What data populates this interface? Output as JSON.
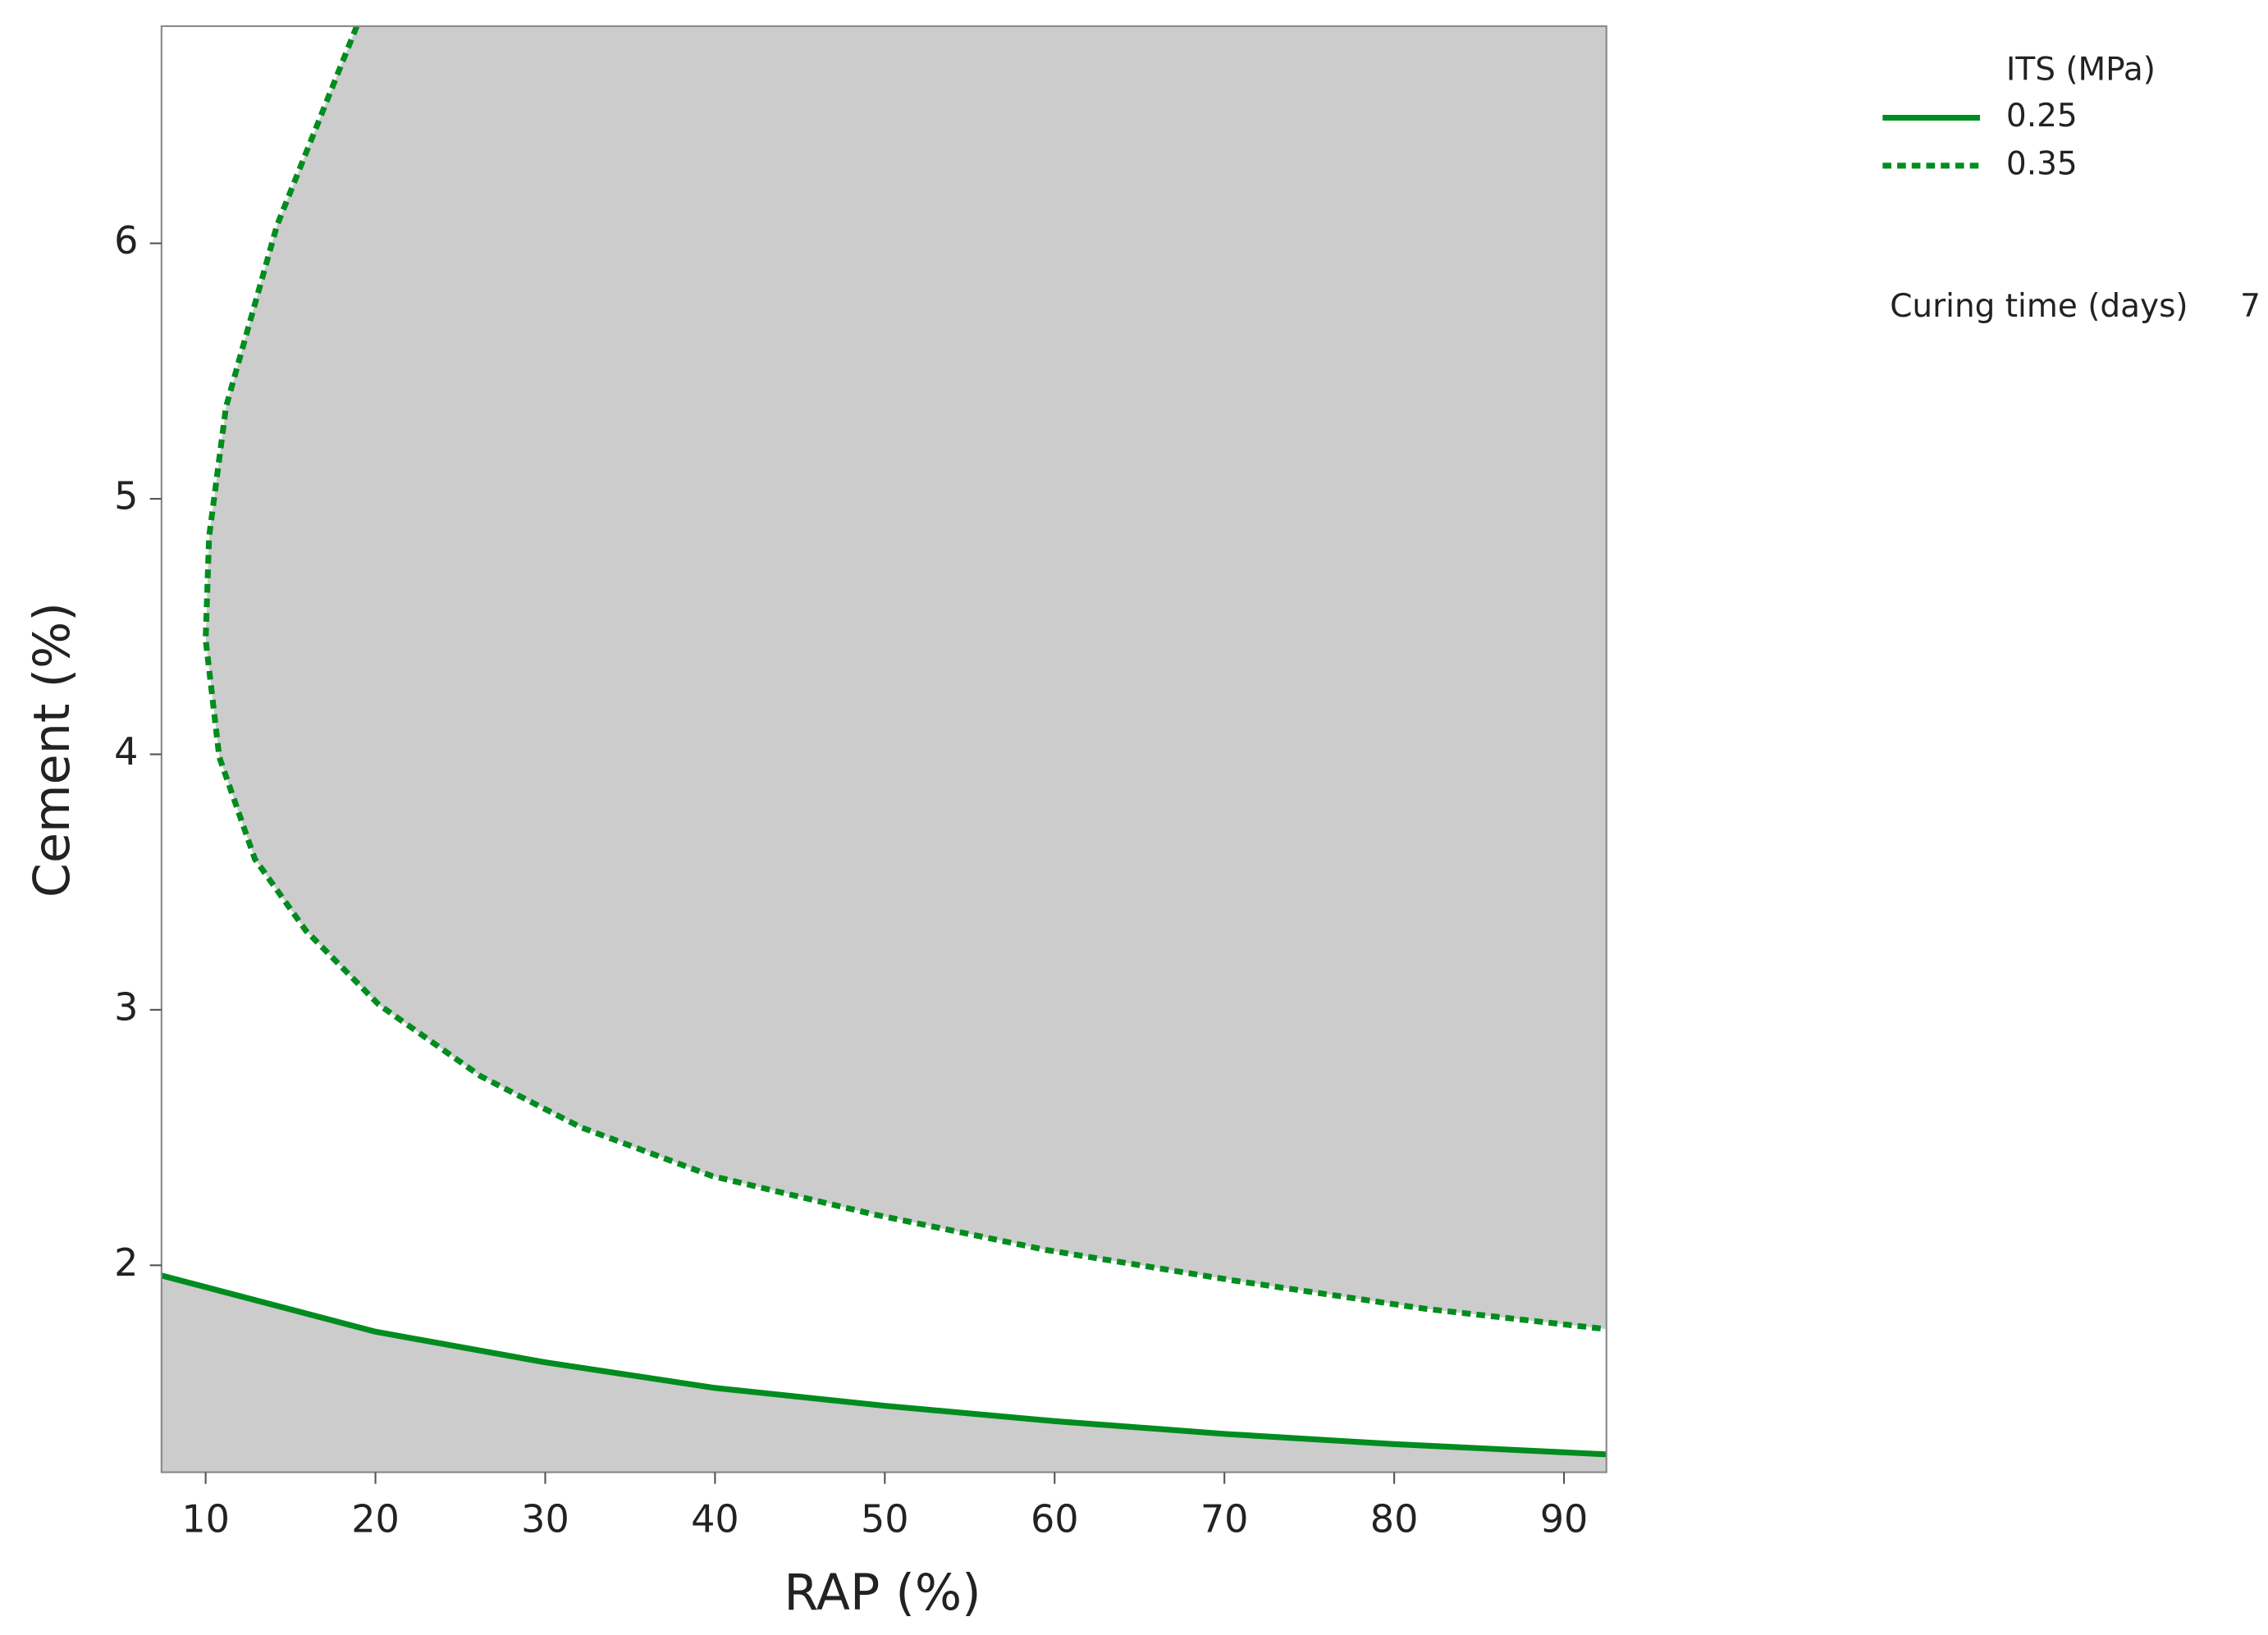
{
  "chart_data": {
    "type": "contour",
    "x_label": "RAP (%)",
    "y_label": "Cement (%)",
    "xlim": [
      7.4,
      92.5
    ],
    "ylim": [
      1.19,
      6.85
    ],
    "xticks": [
      10,
      20,
      30,
      40,
      50,
      60,
      70,
      80,
      90
    ],
    "yticks": [
      2,
      3,
      4,
      5,
      6
    ],
    "region_color": "#cccccc",
    "legend_title": "ITS (MPa)",
    "legend_position": "upper right outside",
    "series": [
      {
        "name": "0.25",
        "color": "#008c1e",
        "line_style": "solid",
        "x": [
          7.4,
          20,
          30,
          40,
          50,
          60,
          70,
          80,
          92.5
        ],
        "values": [
          1.96,
          1.74,
          1.62,
          1.52,
          1.45,
          1.39,
          1.34,
          1.3,
          1.26
        ]
      },
      {
        "name": "0.35",
        "color": "#008c1e",
        "line_style": "dashed",
        "x": [
          18.9,
          14.2,
          11.2,
          10.2,
          10.0,
          10.8,
          12.9,
          15.9,
          20.2,
          26.2,
          32.1,
          39.8,
          49.3,
          59.5,
          70.6,
          81.8,
          92.5
        ],
        "values": [
          6.85,
          6.07,
          5.36,
          4.85,
          4.45,
          3.99,
          3.59,
          3.31,
          3.02,
          2.74,
          2.54,
          2.35,
          2.2,
          2.06,
          1.94,
          1.83,
          1.75
        ]
      }
    ],
    "hold": {
      "label": "Curing time (days)",
      "value": 7
    }
  }
}
